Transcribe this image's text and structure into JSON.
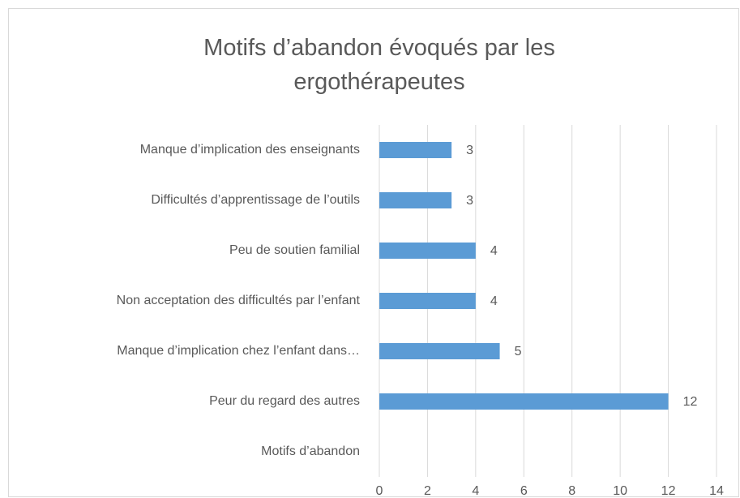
{
  "chart_data": {
    "type": "bar",
    "orientation": "horizontal",
    "title": "Motifs d’abandon évoqués par les ergothérapeutes",
    "categories": [
      "Manque d’implication des enseignants",
      "Difficultés d’apprentissage de l’outils",
      "Peu de soutien familial",
      "Non acceptation des difficultés par l’enfant",
      "Manque d’implication chez l’enfant dans…",
      "Peur du regard des autres",
      "Motifs d’abandon"
    ],
    "values": [
      3,
      3,
      4,
      4,
      5,
      12,
      null
    ],
    "color": "#5b9bd5",
    "xlim": [
      0,
      14
    ],
    "xticks": [
      0,
      2,
      4,
      6,
      8,
      10,
      12,
      14
    ],
    "grid": true
  }
}
